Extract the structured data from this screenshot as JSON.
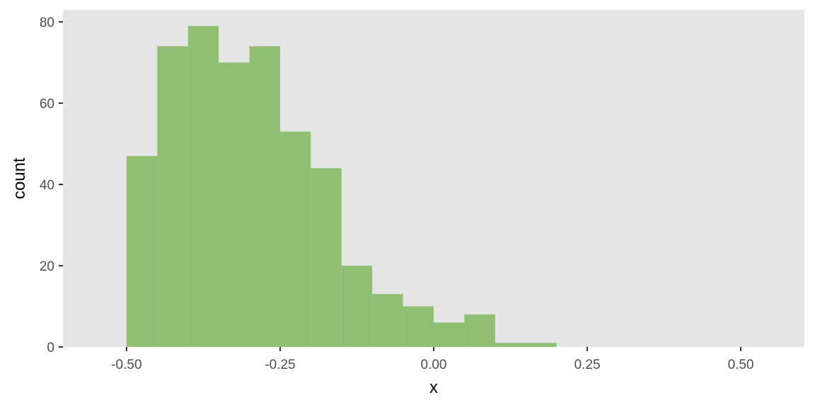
{
  "chart_data": {
    "type": "bar",
    "title": "",
    "xlabel": "x",
    "ylabel": "count",
    "xlim": [
      -0.6035,
      0.6035
    ],
    "ylim": [
      0,
      82.95
    ],
    "x_ticks": [
      -0.5,
      -0.25,
      0.0,
      0.25,
      0.5
    ],
    "x_tick_labels": [
      "-0.50",
      "-0.25",
      "0.00",
      "0.25",
      "0.50"
    ],
    "y_ticks": [
      0,
      20,
      40,
      60,
      80
    ],
    "y_tick_labels": [
      "0",
      "20",
      "40",
      "60",
      "80"
    ],
    "bin_width": 0.05,
    "bin_edges": [
      -0.5,
      -0.45,
      -0.4,
      -0.35,
      -0.3,
      -0.25,
      -0.2,
      -0.15,
      -0.1,
      -0.05,
      0.0,
      0.05,
      0.1,
      0.15,
      0.2
    ],
    "values": [
      47,
      74,
      79,
      70,
      74,
      53,
      44,
      20,
      13,
      10,
      6,
      8,
      1,
      1
    ],
    "grid": false,
    "colors": {
      "panel_background": "#e5e5e5",
      "bar_fill": "#90bf73",
      "tick_mark": "#333333"
    }
  }
}
